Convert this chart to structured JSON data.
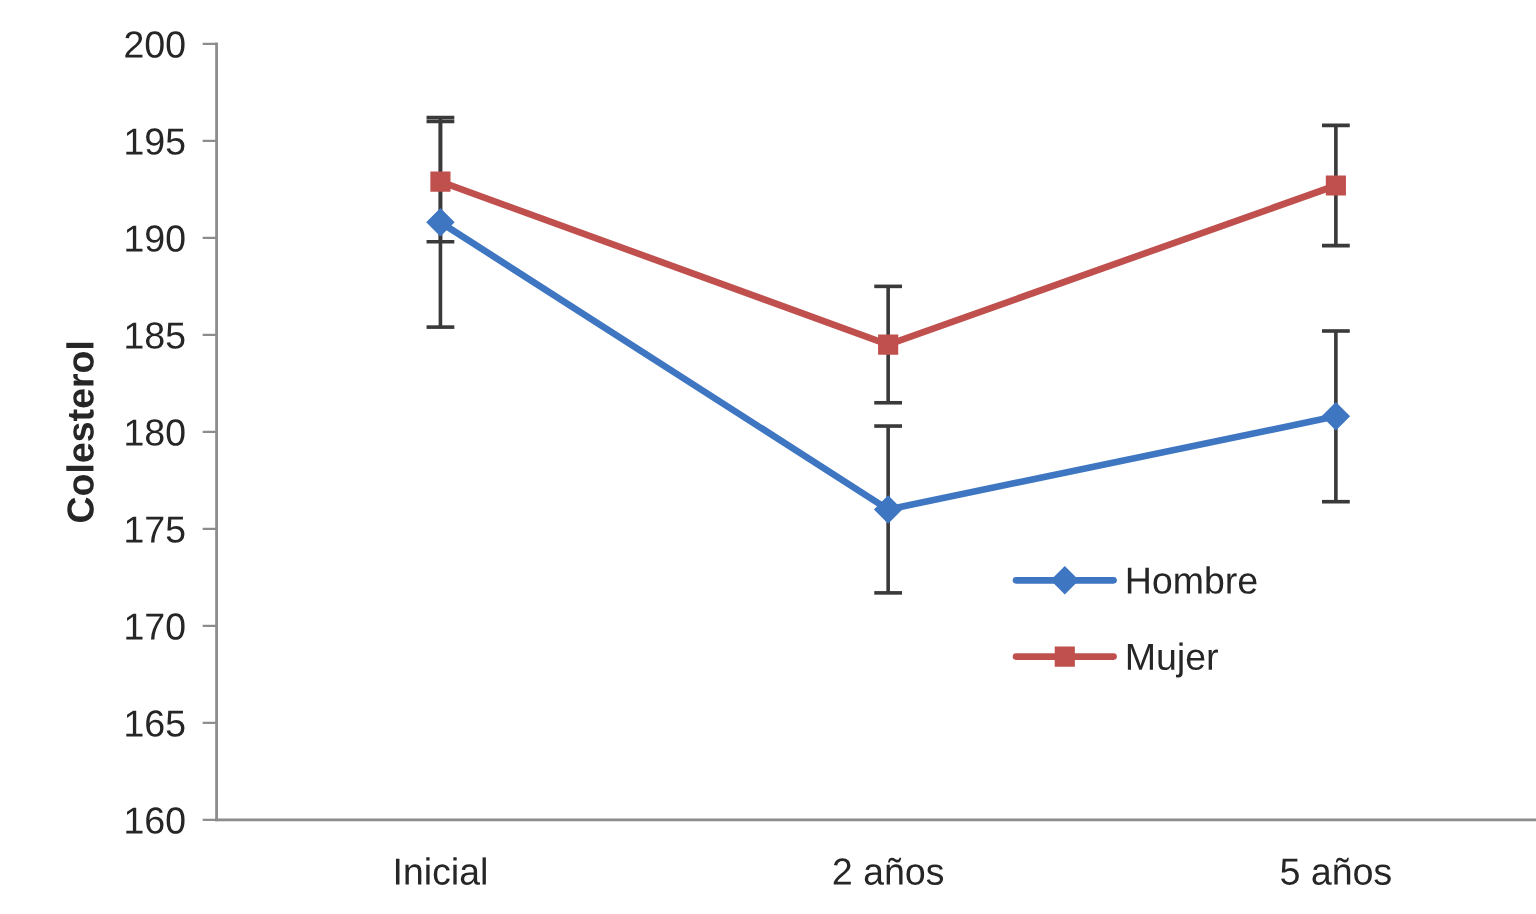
{
  "chart_data": {
    "type": "line",
    "ylabel": "Colesterol",
    "categories": [
      "Inicial",
      "2 años",
      "5 años"
    ],
    "series": [
      {
        "name": "Hombre",
        "color": "#3f76c2",
        "marker": "diamond",
        "values": [
          190.8,
          176.0,
          180.8
        ],
        "errors": [
          5.4,
          4.3,
          4.4
        ]
      },
      {
        "name": "Mujer",
        "color": "#c0504d",
        "marker": "square",
        "values": [
          192.9,
          184.5,
          192.7
        ],
        "errors": [
          3.1,
          3.0,
          3.1
        ]
      }
    ],
    "ylim": [
      160,
      200
    ],
    "yticks": [
      160,
      165,
      170,
      175,
      180,
      185,
      190,
      195,
      200
    ],
    "grid": false,
    "legend": "bottom right",
    "line_style": "solid"
  }
}
